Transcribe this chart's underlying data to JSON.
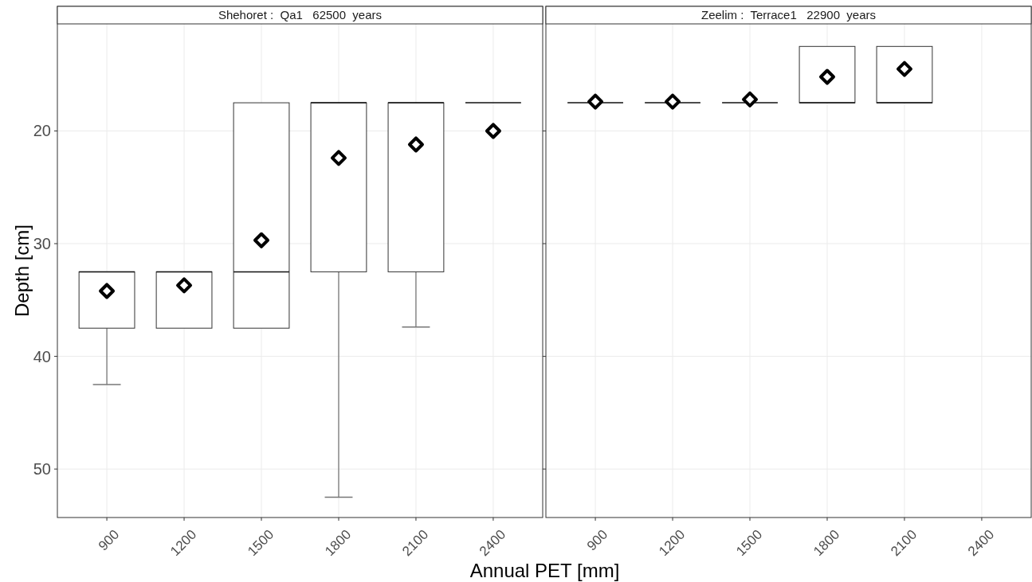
{
  "chart_data": [
    {
      "type": "box",
      "title": "Shehoret :  Qa1   62500  years",
      "xlabel": "Annual PET [mm]",
      "ylabel": "Depth [cm]",
      "categories": [
        "900",
        "1200",
        "1500",
        "1800",
        "2100",
        "2400"
      ],
      "ylim": [
        54.3,
        10.5
      ],
      "yticks": [
        20,
        30,
        40,
        50
      ],
      "grid": true,
      "marker": "diamond",
      "boxes": [
        {
          "low": 32.5,
          "q1": 32.5,
          "median": 32.5,
          "q3": 37.5,
          "high": 42.5,
          "mean": 34.2
        },
        {
          "low": 32.5,
          "q1": 32.5,
          "median": 32.5,
          "q3": 37.5,
          "high": 37.5,
          "mean": 33.7
        },
        {
          "low": 17.5,
          "q1": 17.5,
          "median": 32.5,
          "q3": 37.5,
          "high": 37.5,
          "mean": 29.7
        },
        {
          "low": 17.5,
          "q1": 17.5,
          "median": 17.5,
          "q3": 32.5,
          "high": 52.5,
          "mean": 22.4
        },
        {
          "low": 17.5,
          "q1": 17.5,
          "median": 17.5,
          "q3": 32.5,
          "high": 37.4,
          "mean": 21.2
        },
        {
          "low": 17.5,
          "q1": 17.5,
          "median": 17.5,
          "q3": 17.5,
          "high": 17.5,
          "mean": 20
        }
      ]
    },
    {
      "type": "box",
      "title": "Zeelim :  Terrace1   22900  years",
      "categories": [
        "900",
        "1200",
        "1500",
        "1800",
        "2100",
        "2400"
      ],
      "ylim": [
        54.3,
        10.5
      ],
      "yticks": [
        20,
        30,
        40,
        50
      ],
      "grid": true,
      "marker": "diamond",
      "tick_labels": "x",
      "boxes": [
        {
          "low": 17.5,
          "q1": 17.5,
          "median": 17.5,
          "q3": 17.5,
          "high": 17.5,
          "mean": 17.4
        },
        {
          "low": 17.5,
          "q1": 17.5,
          "median": 17.5,
          "q3": 17.5,
          "high": 17.5,
          "mean": 17.4
        },
        {
          "low": 17.5,
          "q1": 17.5,
          "median": 17.5,
          "q3": 17.5,
          "high": 17.5,
          "mean": 17.2
        },
        {
          "low": 12.5,
          "q1": 12.5,
          "median": 17.5,
          "q3": 17.5,
          "high": 17.5,
          "mean": 15.2
        },
        {
          "low": 12.5,
          "q1": 12.5,
          "median": 17.5,
          "q3": 17.5,
          "high": 17.5,
          "mean": 14.5
        },
        null
      ]
    }
  ]
}
